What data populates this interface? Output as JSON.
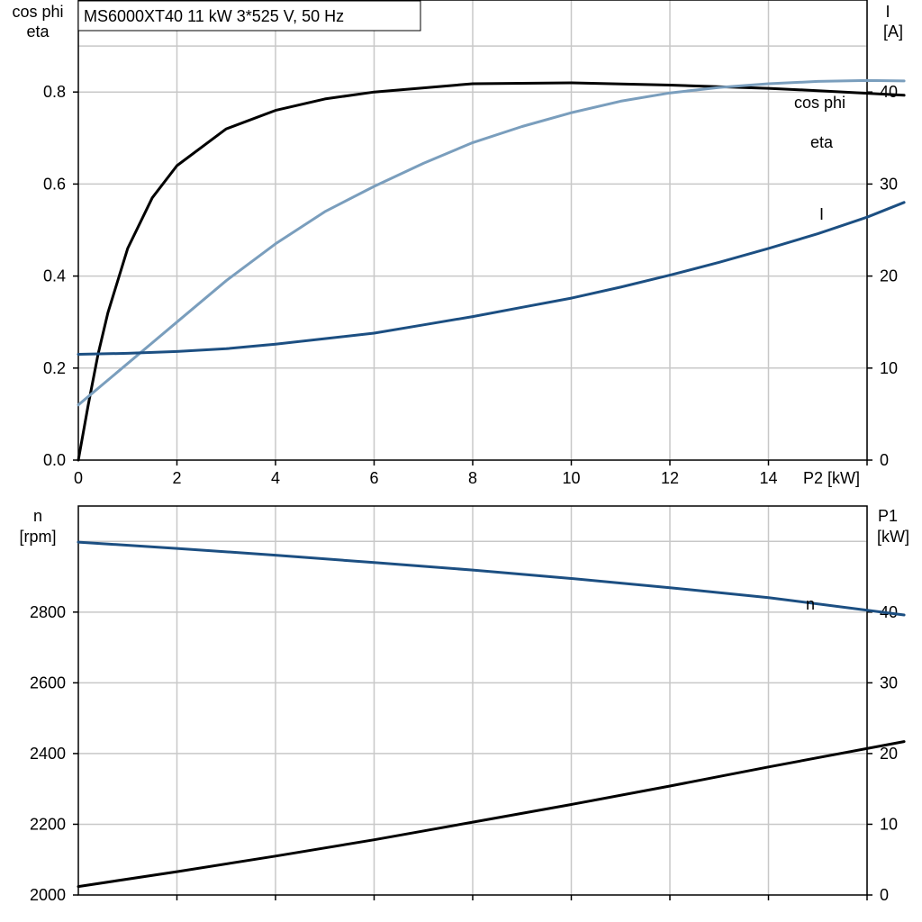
{
  "header": {
    "title": "MS6000XT40   11 kW   3*525 V, 50 Hz"
  },
  "colors": {
    "eta": "#000000",
    "cos_phi": "#7a9ebd",
    "I": "#1c4f82",
    "n": "#1c4f82",
    "P1": "#000000"
  },
  "chart_data": [
    {
      "type": "line",
      "x_axis": {
        "label": "P2 [kW]",
        "range": [
          0,
          16
        ],
        "ticks": [
          "0",
          "2",
          "4",
          "6",
          "8",
          "10",
          "12",
          "14"
        ]
      },
      "y_left": {
        "label_line1": "cos phi",
        "label_line2": "eta",
        "range": [
          0,
          1.0
        ],
        "ticks": [
          "0.0",
          "0.2",
          "0.4",
          "0.6",
          "0.8"
        ]
      },
      "y_right": {
        "label_line1": "I",
        "label_line2": "[A]",
        "range": [
          0,
          50
        ],
        "ticks": [
          "0",
          "10",
          "20",
          "30",
          "40"
        ]
      },
      "series": [
        {
          "name": "eta",
          "axis": "left",
          "x": [
            0,
            0.2,
            0.4,
            0.6,
            1.0,
            1.5,
            2.0,
            3.0,
            4.0,
            5.0,
            6.0,
            8.0,
            10.0,
            12.0,
            14.0,
            15.0,
            16.75
          ],
          "y": [
            0.0,
            0.12,
            0.23,
            0.32,
            0.46,
            0.57,
            0.64,
            0.72,
            0.76,
            0.785,
            0.8,
            0.818,
            0.82,
            0.815,
            0.808,
            0.803,
            0.793
          ]
        },
        {
          "name": "cos phi",
          "axis": "left",
          "x": [
            0,
            1,
            2,
            3,
            4,
            5,
            6,
            7,
            8,
            9,
            10,
            11,
            12,
            13,
            14,
            15,
            16,
            16.75
          ],
          "y": [
            0.12,
            0.21,
            0.3,
            0.39,
            0.47,
            0.54,
            0.595,
            0.645,
            0.69,
            0.725,
            0.755,
            0.78,
            0.798,
            0.81,
            0.818,
            0.823,
            0.825,
            0.824
          ]
        },
        {
          "name": "I",
          "axis": "right",
          "x": [
            0,
            1,
            2,
            3,
            4,
            5,
            6,
            7,
            8,
            9,
            10,
            11,
            12,
            13,
            14,
            15,
            16,
            16.75
          ],
          "y": [
            11.5,
            11.6,
            11.8,
            12.1,
            12.6,
            13.2,
            13.8,
            14.7,
            15.6,
            16.6,
            17.6,
            18.8,
            20.1,
            21.5,
            23.0,
            24.6,
            26.4,
            28.0
          ]
        }
      ]
    },
    {
      "type": "line",
      "x_axis": {
        "range": [
          0,
          16
        ]
      },
      "y_left": {
        "label_line1": "n",
        "label_line2": "[rpm]",
        "range": [
          2000,
          3100
        ],
        "ticks": [
          "2000",
          "2200",
          "2400",
          "2600",
          "2800"
        ]
      },
      "y_right": {
        "label_line1": "P1",
        "label_line2": "[kW]",
        "range": [
          0,
          55
        ],
        "ticks": [
          "0",
          "10",
          "20",
          "30",
          "40"
        ]
      },
      "series": [
        {
          "name": "n",
          "axis": "left",
          "x": [
            0,
            2,
            4,
            6,
            8,
            10,
            12,
            14,
            16.75
          ],
          "y": [
            2998,
            2980,
            2961,
            2940,
            2919,
            2895,
            2869,
            2841,
            2792
          ]
        },
        {
          "axis": "right",
          "x": [
            0,
            2,
            4,
            6,
            8,
            10,
            12,
            14,
            16.75
          ],
          "y": [
            1.2,
            3.3,
            5.5,
            7.8,
            10.3,
            12.8,
            15.4,
            18.1,
            21.7
          ]
        }
      ]
    }
  ]
}
